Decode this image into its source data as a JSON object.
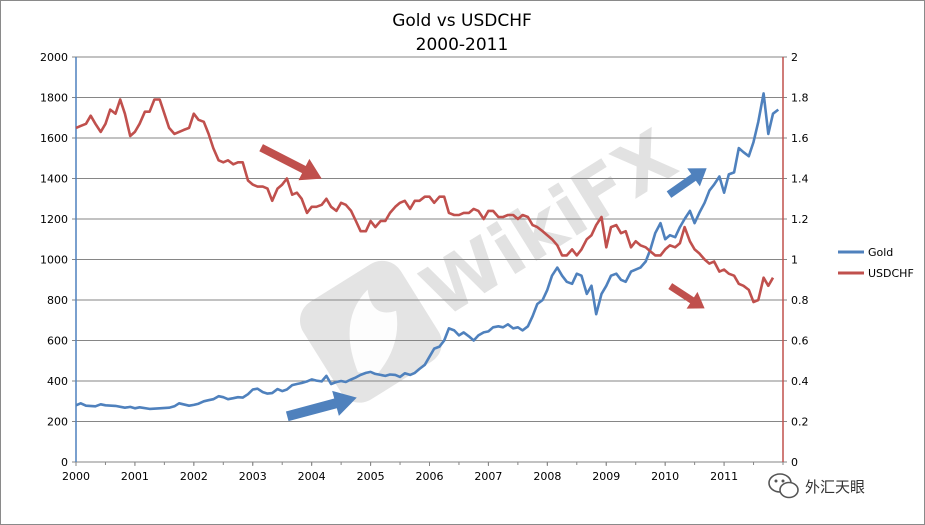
{
  "chart_data": {
    "type": "line",
    "title": [
      "Gold vs USDCHF",
      "2000-2011"
    ],
    "x_ticks": [
      "2000",
      "2001",
      "2002",
      "2003",
      "2004",
      "2005",
      "2006",
      "2007",
      "2008",
      "2009",
      "2010",
      "2011"
    ],
    "xlim": [
      2000,
      2012
    ],
    "y_left": {
      "lim": [
        0,
        2000
      ],
      "ticks": [
        "0",
        "200",
        "400",
        "600",
        "800",
        "1000",
        "1200",
        "1400",
        "1600",
        "1800",
        "2000"
      ]
    },
    "y_right": {
      "lim": [
        0,
        2
      ],
      "ticks": [
        "0",
        "0.2",
        "0.4",
        "0.6",
        "0.8",
        "1",
        "1.2",
        "1.4",
        "1.6",
        "1.8",
        "2"
      ]
    },
    "grid": "horizontal",
    "legend_position": "right",
    "series": [
      {
        "name": "Gold",
        "axis": "left",
        "color": "#4f81bd",
        "points": [
          [
            2000.0,
            280
          ],
          [
            2000.08,
            290
          ],
          [
            2000.17,
            278
          ],
          [
            2000.33,
            275
          ],
          [
            2000.42,
            285
          ],
          [
            2000.5,
            280
          ],
          [
            2000.67,
            277
          ],
          [
            2000.83,
            268
          ],
          [
            2000.92,
            272
          ],
          [
            2001.0,
            265
          ],
          [
            2001.08,
            270
          ],
          [
            2001.25,
            262
          ],
          [
            2001.42,
            265
          ],
          [
            2001.58,
            268
          ],
          [
            2001.67,
            275
          ],
          [
            2001.75,
            290
          ],
          [
            2001.92,
            278
          ],
          [
            2002.0,
            282
          ],
          [
            2002.08,
            288
          ],
          [
            2002.17,
            300
          ],
          [
            2002.25,
            305
          ],
          [
            2002.33,
            310
          ],
          [
            2002.42,
            325
          ],
          [
            2002.5,
            320
          ],
          [
            2002.58,
            310
          ],
          [
            2002.67,
            315
          ],
          [
            2002.75,
            320
          ],
          [
            2002.83,
            318
          ],
          [
            2002.92,
            335
          ],
          [
            2003.0,
            358
          ],
          [
            2003.08,
            362
          ],
          [
            2003.17,
            345
          ],
          [
            2003.25,
            338
          ],
          [
            2003.33,
            340
          ],
          [
            2003.42,
            360
          ],
          [
            2003.5,
            350
          ],
          [
            2003.58,
            358
          ],
          [
            2003.67,
            380
          ],
          [
            2003.75,
            385
          ],
          [
            2003.83,
            390
          ],
          [
            2003.92,
            398
          ],
          [
            2004.0,
            408
          ],
          [
            2004.08,
            402
          ],
          [
            2004.17,
            398
          ],
          [
            2004.25,
            425
          ],
          [
            2004.33,
            385
          ],
          [
            2004.42,
            395
          ],
          [
            2004.5,
            400
          ],
          [
            2004.58,
            395
          ],
          [
            2004.67,
            408
          ],
          [
            2004.75,
            418
          ],
          [
            2004.83,
            430
          ],
          [
            2004.92,
            440
          ],
          [
            2005.0,
            445
          ],
          [
            2005.08,
            435
          ],
          [
            2005.17,
            430
          ],
          [
            2005.25,
            425
          ],
          [
            2005.33,
            432
          ],
          [
            2005.42,
            430
          ],
          [
            2005.5,
            420
          ],
          [
            2005.58,
            438
          ],
          [
            2005.67,
            430
          ],
          [
            2005.75,
            440
          ],
          [
            2005.83,
            460
          ],
          [
            2005.92,
            480
          ],
          [
            2006.0,
            520
          ],
          [
            2006.08,
            560
          ],
          [
            2006.17,
            570
          ],
          [
            2006.25,
            600
          ],
          [
            2006.33,
            660
          ],
          [
            2006.42,
            650
          ],
          [
            2006.5,
            625
          ],
          [
            2006.58,
            640
          ],
          [
            2006.67,
            620
          ],
          [
            2006.75,
            600
          ],
          [
            2006.83,
            625
          ],
          [
            2006.92,
            640
          ],
          [
            2007.0,
            645
          ],
          [
            2007.08,
            665
          ],
          [
            2007.17,
            670
          ],
          [
            2007.25,
            665
          ],
          [
            2007.33,
            680
          ],
          [
            2007.42,
            660
          ],
          [
            2007.5,
            665
          ],
          [
            2007.58,
            650
          ],
          [
            2007.67,
            670
          ],
          [
            2007.75,
            720
          ],
          [
            2007.83,
            780
          ],
          [
            2007.92,
            800
          ],
          [
            2008.0,
            850
          ],
          [
            2008.08,
            920
          ],
          [
            2008.17,
            960
          ],
          [
            2008.25,
            920
          ],
          [
            2008.33,
            890
          ],
          [
            2008.42,
            880
          ],
          [
            2008.5,
            930
          ],
          [
            2008.58,
            920
          ],
          [
            2008.67,
            830
          ],
          [
            2008.75,
            870
          ],
          [
            2008.83,
            730
          ],
          [
            2008.92,
            830
          ],
          [
            2009.0,
            870
          ],
          [
            2009.08,
            920
          ],
          [
            2009.17,
            930
          ],
          [
            2009.25,
            900
          ],
          [
            2009.33,
            890
          ],
          [
            2009.42,
            940
          ],
          [
            2009.5,
            950
          ],
          [
            2009.58,
            960
          ],
          [
            2009.67,
            990
          ],
          [
            2009.75,
            1050
          ],
          [
            2009.83,
            1130
          ],
          [
            2009.92,
            1180
          ],
          [
            2010.0,
            1100
          ],
          [
            2010.08,
            1120
          ],
          [
            2010.17,
            1110
          ],
          [
            2010.25,
            1160
          ],
          [
            2010.33,
            1200
          ],
          [
            2010.42,
            1240
          ],
          [
            2010.5,
            1180
          ],
          [
            2010.58,
            1230
          ],
          [
            2010.67,
            1280
          ],
          [
            2010.75,
            1340
          ],
          [
            2010.83,
            1370
          ],
          [
            2010.92,
            1410
          ],
          [
            2011.0,
            1330
          ],
          [
            2011.08,
            1420
          ],
          [
            2011.17,
            1430
          ],
          [
            2011.25,
            1550
          ],
          [
            2011.33,
            1530
          ],
          [
            2011.42,
            1510
          ],
          [
            2011.5,
            1580
          ],
          [
            2011.58,
            1680
          ],
          [
            2011.67,
            1820
          ],
          [
            2011.75,
            1620
          ],
          [
            2011.83,
            1720
          ],
          [
            2011.92,
            1740
          ]
        ]
      },
      {
        "name": "USDCHF",
        "axis": "right",
        "color": "#c0504d",
        "points": [
          [
            2000.0,
            1.65
          ],
          [
            2000.08,
            1.66
          ],
          [
            2000.17,
            1.67
          ],
          [
            2000.25,
            1.71
          ],
          [
            2000.33,
            1.67
          ],
          [
            2000.42,
            1.63
          ],
          [
            2000.5,
            1.67
          ],
          [
            2000.58,
            1.74
          ],
          [
            2000.67,
            1.72
          ],
          [
            2000.75,
            1.79
          ],
          [
            2000.83,
            1.72
          ],
          [
            2000.92,
            1.61
          ],
          [
            2001.0,
            1.63
          ],
          [
            2001.08,
            1.67
          ],
          [
            2001.17,
            1.73
          ],
          [
            2001.25,
            1.73
          ],
          [
            2001.33,
            1.79
          ],
          [
            2001.42,
            1.79
          ],
          [
            2001.5,
            1.72
          ],
          [
            2001.58,
            1.65
          ],
          [
            2001.67,
            1.62
          ],
          [
            2001.75,
            1.63
          ],
          [
            2001.83,
            1.64
          ],
          [
            2001.92,
            1.65
          ],
          [
            2002.0,
            1.72
          ],
          [
            2002.08,
            1.69
          ],
          [
            2002.17,
            1.68
          ],
          [
            2002.25,
            1.62
          ],
          [
            2002.33,
            1.55
          ],
          [
            2002.42,
            1.49
          ],
          [
            2002.5,
            1.48
          ],
          [
            2002.58,
            1.49
          ],
          [
            2002.67,
            1.47
          ],
          [
            2002.75,
            1.48
          ],
          [
            2002.83,
            1.48
          ],
          [
            2002.92,
            1.39
          ],
          [
            2003.0,
            1.37
          ],
          [
            2003.08,
            1.36
          ],
          [
            2003.17,
            1.36
          ],
          [
            2003.25,
            1.35
          ],
          [
            2003.33,
            1.29
          ],
          [
            2003.42,
            1.35
          ],
          [
            2003.5,
            1.37
          ],
          [
            2003.58,
            1.4
          ],
          [
            2003.67,
            1.32
          ],
          [
            2003.75,
            1.33
          ],
          [
            2003.83,
            1.3
          ],
          [
            2003.92,
            1.23
          ],
          [
            2004.0,
            1.26
          ],
          [
            2004.08,
            1.26
          ],
          [
            2004.17,
            1.27
          ],
          [
            2004.25,
            1.3
          ],
          [
            2004.33,
            1.26
          ],
          [
            2004.42,
            1.24
          ],
          [
            2004.5,
            1.28
          ],
          [
            2004.58,
            1.27
          ],
          [
            2004.67,
            1.24
          ],
          [
            2004.75,
            1.19
          ],
          [
            2004.83,
            1.14
          ],
          [
            2004.92,
            1.14
          ],
          [
            2005.0,
            1.19
          ],
          [
            2005.08,
            1.16
          ],
          [
            2005.17,
            1.19
          ],
          [
            2005.25,
            1.19
          ],
          [
            2005.33,
            1.23
          ],
          [
            2005.42,
            1.26
          ],
          [
            2005.5,
            1.28
          ],
          [
            2005.58,
            1.29
          ],
          [
            2005.67,
            1.25
          ],
          [
            2005.75,
            1.29
          ],
          [
            2005.83,
            1.29
          ],
          [
            2005.92,
            1.31
          ],
          [
            2006.0,
            1.31
          ],
          [
            2006.08,
            1.28
          ],
          [
            2006.17,
            1.31
          ],
          [
            2006.25,
            1.31
          ],
          [
            2006.33,
            1.23
          ],
          [
            2006.42,
            1.22
          ],
          [
            2006.5,
            1.22
          ],
          [
            2006.58,
            1.23
          ],
          [
            2006.67,
            1.23
          ],
          [
            2006.75,
            1.25
          ],
          [
            2006.83,
            1.24
          ],
          [
            2006.92,
            1.2
          ],
          [
            2007.0,
            1.24
          ],
          [
            2007.08,
            1.24
          ],
          [
            2007.17,
            1.21
          ],
          [
            2007.25,
            1.21
          ],
          [
            2007.33,
            1.22
          ],
          [
            2007.42,
            1.22
          ],
          [
            2007.5,
            1.2
          ],
          [
            2007.58,
            1.22
          ],
          [
            2007.67,
            1.21
          ],
          [
            2007.75,
            1.17
          ],
          [
            2007.83,
            1.16
          ],
          [
            2007.92,
            1.14
          ],
          [
            2008.0,
            1.12
          ],
          [
            2008.08,
            1.1
          ],
          [
            2008.17,
            1.07
          ],
          [
            2008.25,
            1.02
          ],
          [
            2008.33,
            1.02
          ],
          [
            2008.42,
            1.05
          ],
          [
            2008.5,
            1.02
          ],
          [
            2008.58,
            1.05
          ],
          [
            2008.67,
            1.1
          ],
          [
            2008.75,
            1.12
          ],
          [
            2008.83,
            1.17
          ],
          [
            2008.92,
            1.21
          ],
          [
            2009.0,
            1.06
          ],
          [
            2009.08,
            1.16
          ],
          [
            2009.17,
            1.17
          ],
          [
            2009.25,
            1.13
          ],
          [
            2009.33,
            1.14
          ],
          [
            2009.42,
            1.06
          ],
          [
            2009.5,
            1.09
          ],
          [
            2009.58,
            1.07
          ],
          [
            2009.67,
            1.06
          ],
          [
            2009.75,
            1.04
          ],
          [
            2009.83,
            1.02
          ],
          [
            2009.92,
            1.02
          ],
          [
            2010.0,
            1.05
          ],
          [
            2010.08,
            1.07
          ],
          [
            2010.17,
            1.06
          ],
          [
            2010.25,
            1.08
          ],
          [
            2010.33,
            1.16
          ],
          [
            2010.42,
            1.09
          ],
          [
            2010.5,
            1.05
          ],
          [
            2010.58,
            1.03
          ],
          [
            2010.67,
            1.0
          ],
          [
            2010.75,
            0.98
          ],
          [
            2010.83,
            0.99
          ],
          [
            2010.92,
            0.94
          ],
          [
            2011.0,
            0.95
          ],
          [
            2011.08,
            0.93
          ],
          [
            2011.17,
            0.92
          ],
          [
            2011.25,
            0.88
          ],
          [
            2011.33,
            0.87
          ],
          [
            2011.42,
            0.85
          ],
          [
            2011.5,
            0.79
          ],
          [
            2011.58,
            0.8
          ],
          [
            2011.67,
            0.91
          ],
          [
            2011.75,
            0.87
          ],
          [
            2011.83,
            0.91
          ]
        ]
      }
    ]
  },
  "colors": {
    "gold": "#4f81bd",
    "usdchf": "#c0504d",
    "grid": "#868686",
    "axis": "#868686"
  },
  "watermark": {
    "text": "WikiFX",
    "icon": "wikifx-eagle-logo"
  },
  "badge": {
    "icon": "wechat-icon",
    "text": "外汇天眼"
  },
  "annotations": [
    {
      "name": "usdchf-down-arrow-1",
      "icon": "arrow-down-right",
      "color": "#c0504d"
    },
    {
      "name": "gold-up-arrow-1",
      "icon": "arrow-up-right",
      "color": "#4f81bd"
    },
    {
      "name": "gold-up-arrow-2",
      "icon": "arrow-up-right",
      "color": "#4f81bd"
    },
    {
      "name": "usdchf-down-arrow-2",
      "icon": "arrow-down-right",
      "color": "#c0504d"
    }
  ]
}
